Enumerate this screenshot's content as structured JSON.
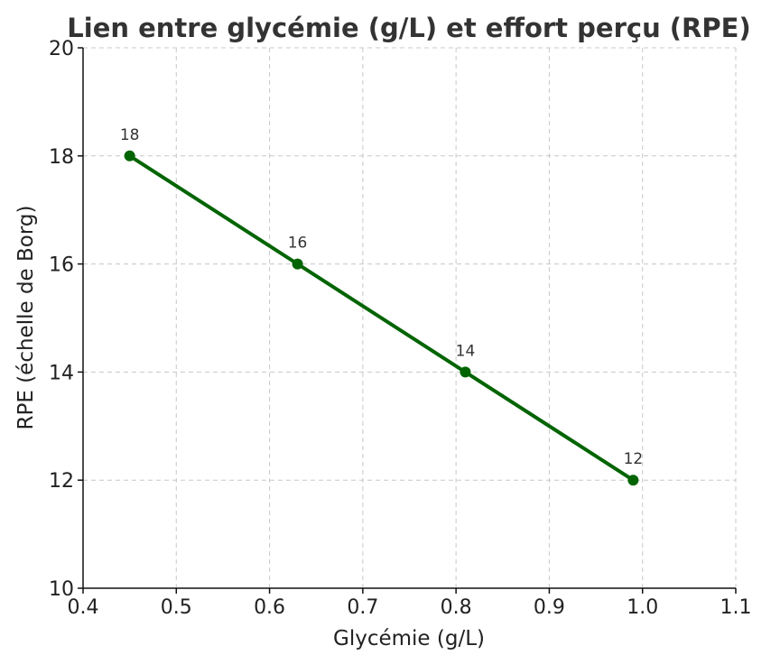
{
  "chart_data": {
    "type": "line",
    "title": "Lien entre glycémie (g/L) et effort perçu (RPE)",
    "xlabel": "Glycémie (g/L)",
    "ylabel": "RPE (échelle de Borg)",
    "xlim": [
      0.4,
      1.1
    ],
    "ylim": [
      10,
      20
    ],
    "xticks": [
      "0.4",
      "0.5",
      "0.6",
      "0.7",
      "0.8",
      "0.9",
      "1.0",
      "1.1"
    ],
    "yticks": [
      "10",
      "12",
      "14",
      "16",
      "18",
      "20"
    ],
    "grid": true,
    "series": [
      {
        "x": [
          0.45,
          0.63,
          0.81,
          0.99
        ],
        "y": [
          18,
          16,
          14,
          12
        ],
        "labels": [
          "18",
          "16",
          "14",
          "12"
        ],
        "color": "#006400",
        "marker": "circle"
      }
    ]
  }
}
